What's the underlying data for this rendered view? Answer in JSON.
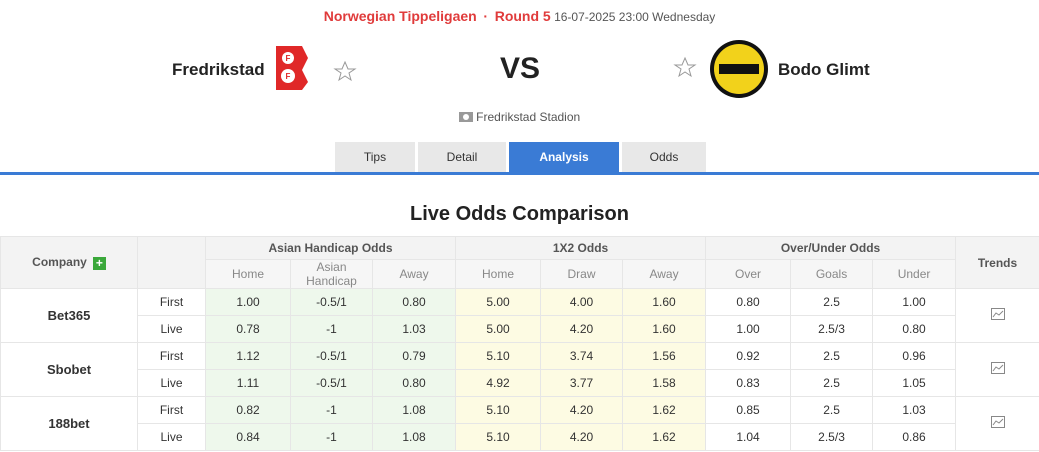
{
  "header": {
    "league": "Norwegian Tippeligaen",
    "separator": "·",
    "round": "Round 5",
    "datetime": "16-07-2025 23:00 Wednesday"
  },
  "match": {
    "home_team": "Fredrikstad",
    "vs": "VS",
    "away_team": "Bodo Glimt",
    "venue": "Fredrikstad Stadion"
  },
  "tabs": [
    "Tips",
    "Detail",
    "Analysis",
    "Odds"
  ],
  "odds_table": {
    "title": "Live Odds Comparison",
    "columns": {
      "company": "Company",
      "trends": "Trends",
      "groups": [
        {
          "name": "Asian Handicap Odds",
          "subcolumns": [
            "Home",
            "Asian Handicap",
            "Away"
          ]
        },
        {
          "name": "1X2 Odds",
          "subcolumns": [
            "Home",
            "Draw",
            "Away"
          ]
        },
        {
          "name": "Over/Under Odds",
          "subcolumns": [
            "Over",
            "Goals",
            "Under"
          ]
        }
      ]
    },
    "rows": [
      {
        "company": "Bet365",
        "lines": [
          [
            "First",
            "1.00",
            "-0.5/1",
            "0.80",
            "5.00",
            "4.00",
            "1.60",
            "0.80",
            "2.5",
            "1.00"
          ],
          [
            "Live",
            "0.78",
            "-1",
            "1.03",
            "5.00",
            "4.20",
            "1.60",
            "1.00",
            "2.5/3",
            "0.80"
          ]
        ]
      },
      {
        "company": "Sbobet",
        "lines": [
          [
            "First",
            "1.12",
            "-0.5/1",
            "0.79",
            "5.10",
            "3.74",
            "1.56",
            "0.92",
            "2.5",
            "0.96"
          ],
          [
            "Live",
            "1.11",
            "-0.5/1",
            "0.80",
            "4.92",
            "3.77",
            "1.58",
            "0.83",
            "2.5",
            "1.05"
          ]
        ]
      },
      {
        "company": "188bet",
        "lines": [
          [
            "First",
            "0.82",
            "-1",
            "1.08",
            "5.10",
            "4.20",
            "1.62",
            "0.85",
            "2.5",
            "1.03"
          ],
          [
            "Live",
            "0.84",
            "-1",
            "1.08",
            "5.10",
            "4.20",
            "1.62",
            "1.04",
            "2.5/3",
            "0.86"
          ]
        ]
      }
    ]
  }
}
